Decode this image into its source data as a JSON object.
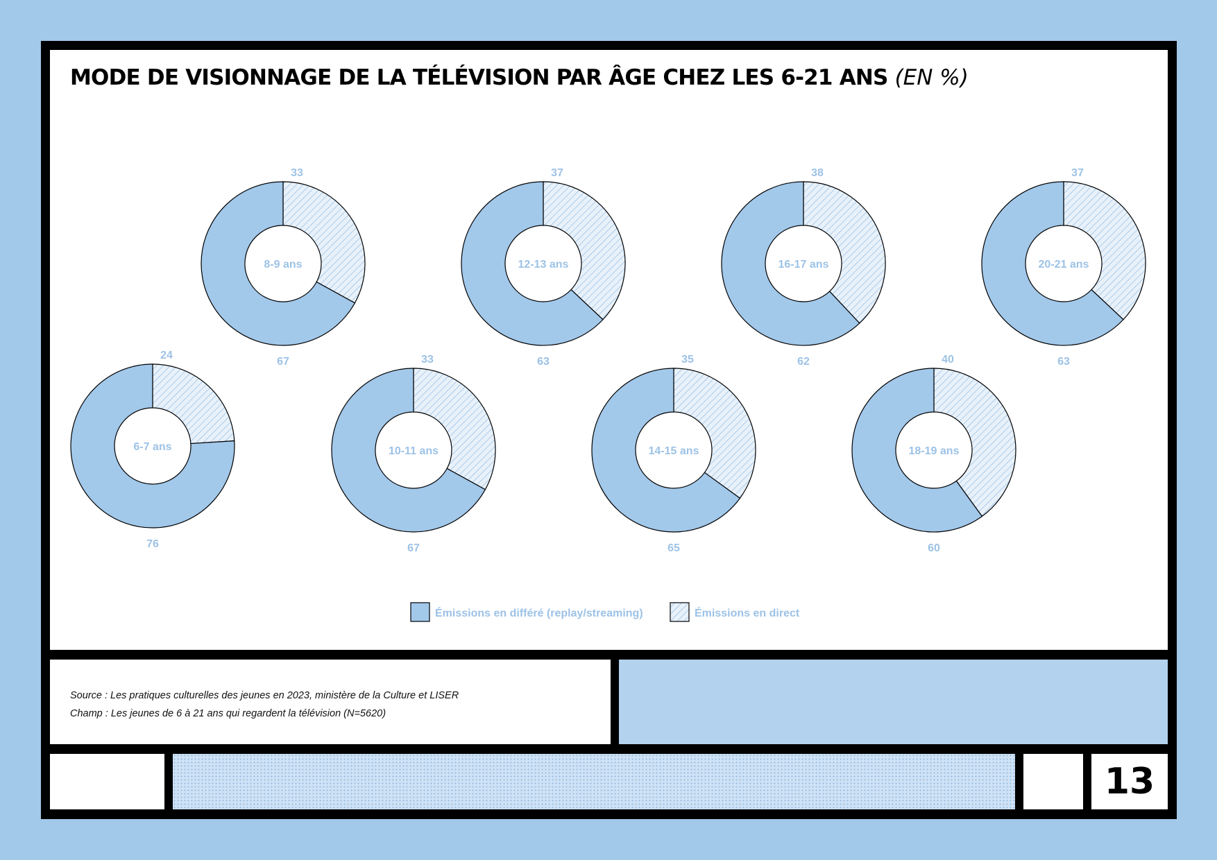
{
  "chart_data": {
    "type": "pie",
    "variant": "donut",
    "title": "MODE DE VISIONNAGE DE LA TÉLÉVISION PAR ÂGE CHEZ LES 6-21 ANS",
    "unit": "(EN %)",
    "series_names": [
      "Émissions en différé (replay/streaming)",
      "Émissions en direct"
    ],
    "groups": [
      {
        "label": "6-7 ans",
        "differe": 76,
        "direct": 24
      },
      {
        "label": "8-9 ans",
        "differe": 67,
        "direct": 33
      },
      {
        "label": "10-11 ans",
        "differe": 67,
        "direct": 33
      },
      {
        "label": "12-13 ans",
        "differe": 63,
        "direct": 37
      },
      {
        "label": "14-15 ans",
        "differe": 65,
        "direct": 35
      },
      {
        "label": "16-17 ans",
        "differe": 62,
        "direct": 38
      },
      {
        "label": "18-19 ans",
        "differe": 60,
        "direct": 40
      },
      {
        "label": "20-21 ans",
        "differe": 63,
        "direct": 37
      }
    ],
    "legend_position": "bottom-center",
    "colors": {
      "differe": "#a2c8ea",
      "direct_hatch": "#9dc2e6",
      "direct_bg": "#e8f1fa",
      "outline": "#000000",
      "label": "#9dc2e6"
    }
  },
  "source": {
    "line1": "Source : Les pratiques culturelles des jeunes en 2023, ministère de la Culture et LISER",
    "line2": "Champ : Les jeunes de 6 à 21 ans qui regardent la télévision (N=5620)"
  },
  "page_number": "13"
}
